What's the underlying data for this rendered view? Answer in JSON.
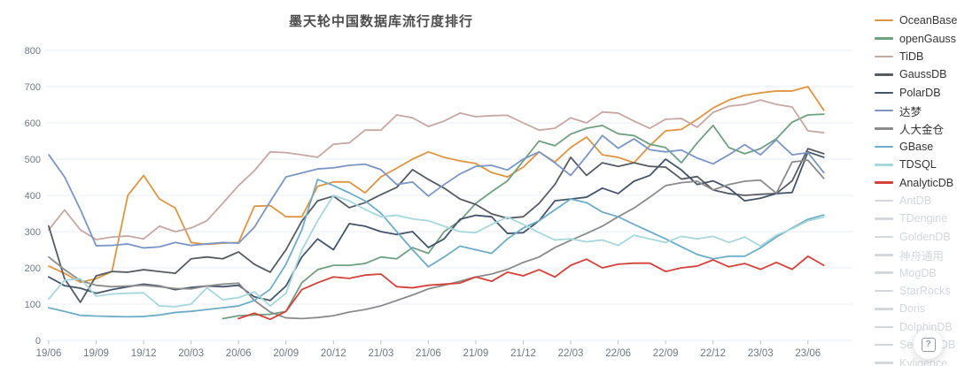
{
  "chart_data": {
    "type": "line",
    "title": "墨天轮中国数据库流行度排行",
    "ylim": [
      0,
      800
    ],
    "y_tick_step": 100,
    "x_tick_every": 3,
    "grid": true,
    "legend_position": "right",
    "x": [
      "19/06",
      "19/07",
      "19/08",
      "19/09",
      "19/10",
      "19/11",
      "19/12",
      "20/01",
      "20/02",
      "20/03",
      "20/04",
      "20/05",
      "20/06",
      "20/07",
      "20/08",
      "20/09",
      "20/10",
      "20/11",
      "20/12",
      "21/01",
      "21/02",
      "21/03",
      "21/04",
      "21/05",
      "21/06",
      "21/07",
      "21/08",
      "21/09",
      "21/10",
      "21/11",
      "21/12",
      "22/01",
      "22/02",
      "22/03",
      "22/04",
      "22/05",
      "22/06",
      "22/07",
      "22/08",
      "22/09",
      "22/10",
      "22/11",
      "22/12",
      "23/01",
      "23/02",
      "23/03",
      "23/04",
      "23/05",
      "23/06",
      "23/07"
    ],
    "series": [
      {
        "name": "OceanBase",
        "color": "#de9542",
        "values": [
          205,
          185,
          160,
          170,
          190,
          400,
          455,
          390,
          365,
          270,
          265,
          268,
          270,
          370,
          372,
          341,
          341,
          425,
          437,
          437,
          407,
          451,
          475,
          500,
          520,
          505,
          495,
          488,
          463,
          451,
          478,
          520,
          492,
          532,
          561,
          512,
          505,
          490,
          537,
          578,
          582,
          610,
          641,
          663,
          676,
          683,
          688,
          688,
          700,
          635
        ]
      },
      {
        "name": "openGauss",
        "color": "#6fa080",
        "values": [
          null,
          null,
          null,
          null,
          null,
          null,
          null,
          null,
          null,
          null,
          null,
          60,
          68,
          70,
          72,
          80,
          159,
          195,
          207,
          207,
          212,
          230,
          225,
          256,
          240,
          300,
          330,
          378,
          410,
          440,
          495,
          550,
          537,
          569,
          585,
          593,
          570,
          565,
          541,
          532,
          490,
          545,
          593,
          532,
          515,
          529,
          556,
          602,
          622,
          624
        ]
      },
      {
        "name": "TiDB",
        "color": "#c8a7a3",
        "values": [
          305,
          360,
          305,
          278,
          285,
          288,
          280,
          315,
          300,
          310,
          330,
          378,
          427,
          468,
          520,
          518,
          512,
          505,
          541,
          545,
          580,
          580,
          622,
          614,
          590,
          605,
          627,
          617,
          620,
          621,
          600,
          580,
          585,
          614,
          600,
          630,
          627,
          605,
          585,
          610,
          612,
          588,
          629,
          646,
          651,
          663,
          651,
          644,
          578,
          573
        ]
      },
      {
        "name": "GaussDB",
        "color": "#565b62",
        "values": [
          315,
          170,
          105,
          178,
          190,
          188,
          195,
          190,
          185,
          225,
          230,
          225,
          244,
          210,
          188,
          250,
          329,
          385,
          398,
          366,
          380,
          402,
          422,
          471,
          444,
          420,
          390,
          375,
          349,
          337,
          341,
          378,
          430,
          505,
          455,
          490,
          480,
          490,
          480,
          478,
          445,
          452,
          415,
          405,
          400,
          403,
          405,
          440,
          529,
          515
        ]
      },
      {
        "name": "PolarDB",
        "color": "#44546a",
        "values": [
          175,
          151,
          144,
          130,
          140,
          148,
          155,
          150,
          140,
          146,
          150,
          148,
          152,
          120,
          110,
          150,
          230,
          280,
          250,
          322,
          315,
          300,
          292,
          300,
          256,
          280,
          334,
          345,
          341,
          295,
          297,
          330,
          385,
          390,
          395,
          420,
          405,
          439,
          455,
          500,
          470,
          430,
          440,
          420,
          385,
          392,
          405,
          408,
          520,
          505
        ]
      },
      {
        "name": "达梦",
        "color": "#7b96c5",
        "values": [
          512,
          451,
          361,
          261,
          262,
          266,
          255,
          258,
          270,
          262,
          266,
          270,
          268,
          312,
          383,
          451,
          462,
          473,
          476,
          483,
          486,
          471,
          430,
          437,
          398,
          430,
          459,
          480,
          483,
          470,
          500,
          520,
          490,
          455,
          508,
          565,
          530,
          556,
          526,
          520,
          525,
          503,
          487,
          512,
          540,
          512,
          553,
          512,
          518,
          463
        ]
      },
      {
        "name": "人大金仓",
        "color": "#8b8b8b",
        "values": [
          230,
          195,
          165,
          152,
          148,
          150,
          152,
          148,
          143,
          142,
          150,
          155,
          158,
          110,
          78,
          62,
          60,
          63,
          68,
          78,
          85,
          95,
          110,
          125,
          142,
          152,
          163,
          175,
          183,
          196,
          215,
          230,
          256,
          276,
          295,
          315,
          341,
          365,
          395,
          427,
          435,
          439,
          415,
          430,
          439,
          442,
          406,
          492,
          497,
          447
        ]
      },
      {
        "name": "GBase",
        "color": "#6eadc7",
        "values": [
          90,
          80,
          69,
          67,
          66,
          65,
          66,
          70,
          77,
          80,
          85,
          90,
          95,
          110,
          141,
          210,
          305,
          444,
          427,
          407,
          385,
          351,
          300,
          250,
          203,
          230,
          260,
          250,
          240,
          280,
          310,
          330,
          360,
          390,
          380,
          354,
          341,
          320,
          300,
          280,
          258,
          237,
          225,
          232,
          232,
          255,
          285,
          310,
          334,
          346
        ]
      },
      {
        "name": "TDSQL",
        "color": "#a6d7dc",
        "values": [
          114,
          166,
          170,
          122,
          128,
          130,
          131,
          95,
          93,
          100,
          145,
          112,
          118,
          134,
          95,
          130,
          249,
          330,
          400,
          385,
          361,
          341,
          345,
          335,
          330,
          315,
          300,
          297,
          320,
          340,
          320,
          297,
          277,
          280,
          272,
          277,
          262,
          290,
          280,
          270,
          287,
          280,
          287,
          270,
          285,
          260,
          290,
          308,
          330,
          340
        ]
      },
      {
        "name": "AnalyticDB",
        "color": "#d4413a",
        "values": [
          null,
          null,
          null,
          null,
          null,
          null,
          null,
          null,
          null,
          null,
          null,
          null,
          60,
          75,
          58,
          80,
          140,
          159,
          175,
          171,
          180,
          183,
          148,
          145,
          152,
          155,
          158,
          175,
          163,
          188,
          178,
          195,
          175,
          207,
          224,
          200,
          210,
          213,
          213,
          190,
          200,
          205,
          222,
          203,
          212,
          196,
          215,
          196,
          232,
          207
        ]
      }
    ]
  },
  "legend": {
    "items": [
      {
        "label": "OceanBase",
        "color": "#de9542",
        "active": true
      },
      {
        "label": "openGauss",
        "color": "#6fa080",
        "active": true
      },
      {
        "label": "TiDB",
        "color": "#c8a7a3",
        "active": true
      },
      {
        "label": "GaussDB",
        "color": "#565b62",
        "active": true
      },
      {
        "label": "PolarDB",
        "color": "#44546a",
        "active": true
      },
      {
        "label": "达梦",
        "color": "#7b96c5",
        "active": true
      },
      {
        "label": "人大金仓",
        "color": "#8b8b8b",
        "active": true
      },
      {
        "label": "GBase",
        "color": "#6eadc7",
        "active": true
      },
      {
        "label": "TDSQL",
        "color": "#a6d7dc",
        "active": true
      },
      {
        "label": "AnalyticDB",
        "color": "#d4413a",
        "active": true
      },
      {
        "label": "AntDB",
        "color": "#d4d7dc",
        "active": false
      },
      {
        "label": "TDengine",
        "color": "#d4d7dc",
        "active": false
      },
      {
        "label": "GoldenDB",
        "color": "#d4d7dc",
        "active": false
      },
      {
        "label": "神舟通用",
        "color": "#d4d7dc",
        "active": false
      },
      {
        "label": "MogDB",
        "color": "#d4d7dc",
        "active": false
      },
      {
        "label": "StarRocks",
        "color": "#d4d7dc",
        "active": false
      },
      {
        "label": "Doris",
        "color": "#d4d7dc",
        "active": false
      },
      {
        "label": "DolphinDB",
        "color": "#d4d7dc",
        "active": false
      },
      {
        "label": "SequoiaDB",
        "color": "#d4d7dc",
        "active": false
      },
      {
        "label": "Kyligence",
        "color": "#d4d7dc",
        "active": false
      }
    ]
  },
  "axes": {
    "y_label_color": "#6e7882",
    "x_label_color": "#6e7882",
    "grid_color": "#e7edf4",
    "tick_color": "#b9c2cc"
  },
  "help_button": {
    "icon": "question-mark-icon",
    "label": "?"
  }
}
